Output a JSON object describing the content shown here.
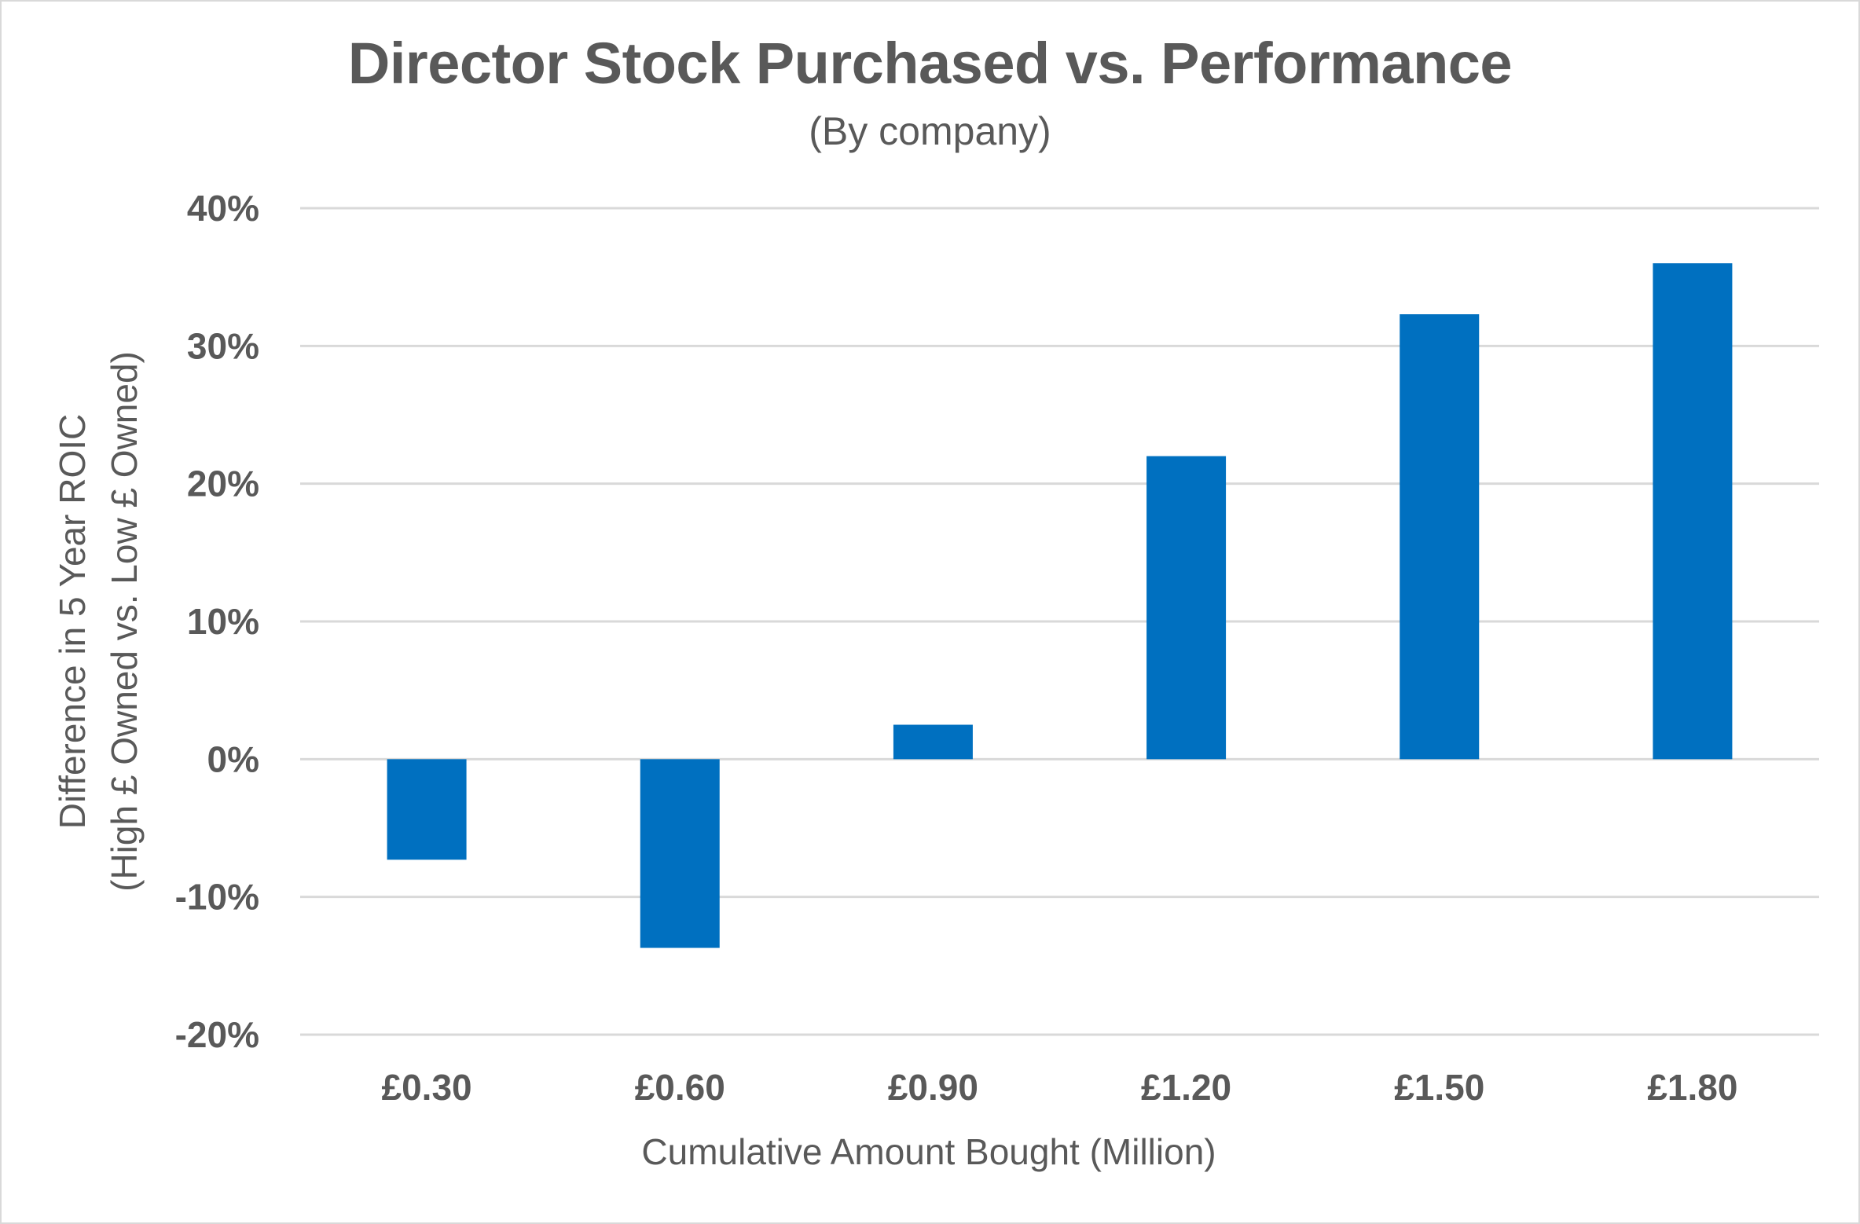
{
  "chart_data": {
    "type": "bar",
    "title": "Director Stock Purchased vs. Performance",
    "subtitle": "(By company)",
    "xlabel": "Cumulative Amount Bought (Million)",
    "ylabel_line1": "Difference in 5 Year ROIC",
    "ylabel_line2": "(High £ Owned vs. Low £ Owned)",
    "categories": [
      "£0.30",
      "£0.60",
      "£0.90",
      "£1.20",
      "£1.50",
      "£1.80"
    ],
    "values": [
      -7.3,
      -13.7,
      2.5,
      22.0,
      32.3,
      36.0
    ],
    "ylim": [
      -20,
      40
    ],
    "yticks": [
      -20,
      -10,
      0,
      10,
      20,
      30,
      40
    ],
    "ytick_labels": [
      "-20%",
      "-10%",
      "0%",
      "10%",
      "20%",
      "30%",
      "40%"
    ],
    "grid": true,
    "legend": "none",
    "bar_color": "#0070c0"
  }
}
